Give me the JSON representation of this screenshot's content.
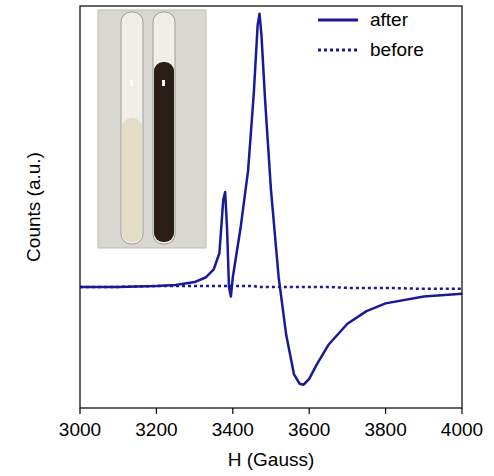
{
  "chart_data": {
    "type": "line",
    "x_label": "H (Gauss)",
    "y_label": "Counts (a.u.)",
    "x": [
      3000,
      3100,
      3200,
      3250,
      3300,
      3330,
      3350,
      3365,
      3375,
      3380,
      3385,
      3390,
      3395,
      3400,
      3420,
      3440,
      3455,
      3465,
      3470,
      3475,
      3485,
      3500,
      3520,
      3540,
      3560,
      3575,
      3585,
      3600,
      3620,
      3650,
      3700,
      3750,
      3800,
      3900,
      4000
    ],
    "series": [
      {
        "name": "after",
        "color": "#1a1a99",
        "line_style": "solid",
        "values": [
          0,
          0,
          0.01,
          0.02,
          0.05,
          0.1,
          0.18,
          0.35,
          0.9,
          0.98,
          0.6,
          0,
          -0.1,
          0.1,
          0.6,
          1.2,
          2.0,
          2.7,
          2.82,
          2.6,
          1.9,
          1.0,
          0.1,
          -0.5,
          -0.9,
          -1.0,
          -1.01,
          -0.95,
          -0.8,
          -0.6,
          -0.38,
          -0.25,
          -0.17,
          -0.1,
          -0.07
        ]
      },
      {
        "name": "before",
        "color": "#1a1a99",
        "line_style": "dotted",
        "values": [
          0,
          0,
          0.01,
          0.01,
          0.01,
          0.01,
          0.01,
          0.01,
          0.01,
          0.01,
          0.01,
          0.01,
          0.01,
          0.01,
          0.01,
          0.01,
          0.01,
          0.0,
          0.0,
          0.0,
          0.0,
          0.0,
          0.0,
          0.0,
          0.0,
          0.0,
          0.0,
          0.0,
          0.0,
          0.0,
          -0.01,
          -0.01,
          -0.01,
          -0.02,
          -0.02
        ]
      }
    ],
    "xlim": [
      3000,
      4000
    ],
    "xticks": [
      3000,
      3200,
      3400,
      3600,
      3800,
      4000
    ],
    "ylim": [
      -1.25,
      2.9
    ],
    "tick_labels": "x",
    "legend": "upper right",
    "grid": false
  }
}
